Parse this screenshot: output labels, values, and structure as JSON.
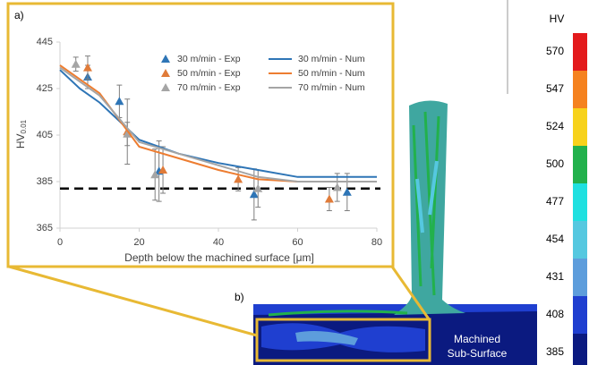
{
  "chart_data": {
    "type": "scatter",
    "label": "a)",
    "xlabel": "Depth below the machined surface [μm]",
    "ylabel": "HV",
    "ylabel_subscript": "0.01",
    "xlim": [
      0,
      80
    ],
    "xticks": [
      0,
      20,
      40,
      60,
      80
    ],
    "ylim": [
      365,
      445
    ],
    "yticks": [
      365,
      385,
      405,
      425,
      445
    ],
    "grid": false,
    "reference_line": {
      "value": 382,
      "color": "#000000",
      "style": "dashed"
    },
    "series": [
      {
        "name": "30 m/min - Exp",
        "kind": "scatter",
        "color": "#2e75b6",
        "x": [
          7,
          15,
          25,
          49,
          72.5
        ],
        "values": [
          430,
          419.5,
          389.5,
          379.5,
          380.5
        ],
        "errors": [
          5,
          7,
          13,
          11,
          8
        ]
      },
      {
        "name": "50 m/min - Exp",
        "kind": "scatter",
        "color": "#e07b39",
        "x": [
          7,
          17,
          26,
          45,
          68
        ],
        "values": [
          434,
          406.5,
          390,
          386,
          377.5
        ],
        "errors": [
          5,
          14,
          10,
          5,
          5
        ]
      },
      {
        "name": "70 m/min - Exp",
        "kind": "scatter",
        "color": "#a5a5a5",
        "x": [
          4,
          17,
          24,
          50,
          70
        ],
        "values": [
          435.5,
          405.5,
          388,
          382,
          382.5
        ],
        "errors": [
          3,
          5,
          11,
          8,
          6
        ]
      },
      {
        "name": "30 m/min - Num",
        "kind": "line",
        "color": "#2e75b6",
        "x": [
          0,
          5,
          10,
          20,
          30,
          40,
          50,
          60,
          80
        ],
        "values": [
          433,
          425,
          419,
          403,
          397,
          393,
          390,
          387,
          387
        ]
      },
      {
        "name": "50 m/min - Num",
        "kind": "line",
        "color": "#ed7d31",
        "x": [
          0,
          5,
          10,
          20,
          30,
          40,
          50,
          60,
          80
        ],
        "values": [
          435,
          429,
          423,
          400,
          395,
          390,
          386,
          385,
          385
        ]
      },
      {
        "name": "70 m/min - Num",
        "kind": "line",
        "color": "#a5a5a5",
        "x": [
          0,
          5,
          10,
          20,
          30,
          40,
          50,
          60,
          80
        ],
        "values": [
          434,
          428,
          422,
          402,
          397,
          392,
          387,
          385,
          385
        ]
      }
    ]
  },
  "colorbar": {
    "title": "HV",
    "ticks": [
      570,
      547,
      524,
      500,
      477,
      454,
      431,
      408,
      385
    ],
    "colors": [
      "#e31a1c",
      "#f5821f",
      "#f7d21b",
      "#22b14c",
      "#1fe0e0",
      "#55c8e0",
      "#5d9ddc",
      "#1f3fd0",
      "#0b1a80"
    ]
  },
  "figure": {
    "panel_b_label": "b)",
    "region_label_lines": [
      "Machined",
      "Sub-Surface"
    ]
  }
}
